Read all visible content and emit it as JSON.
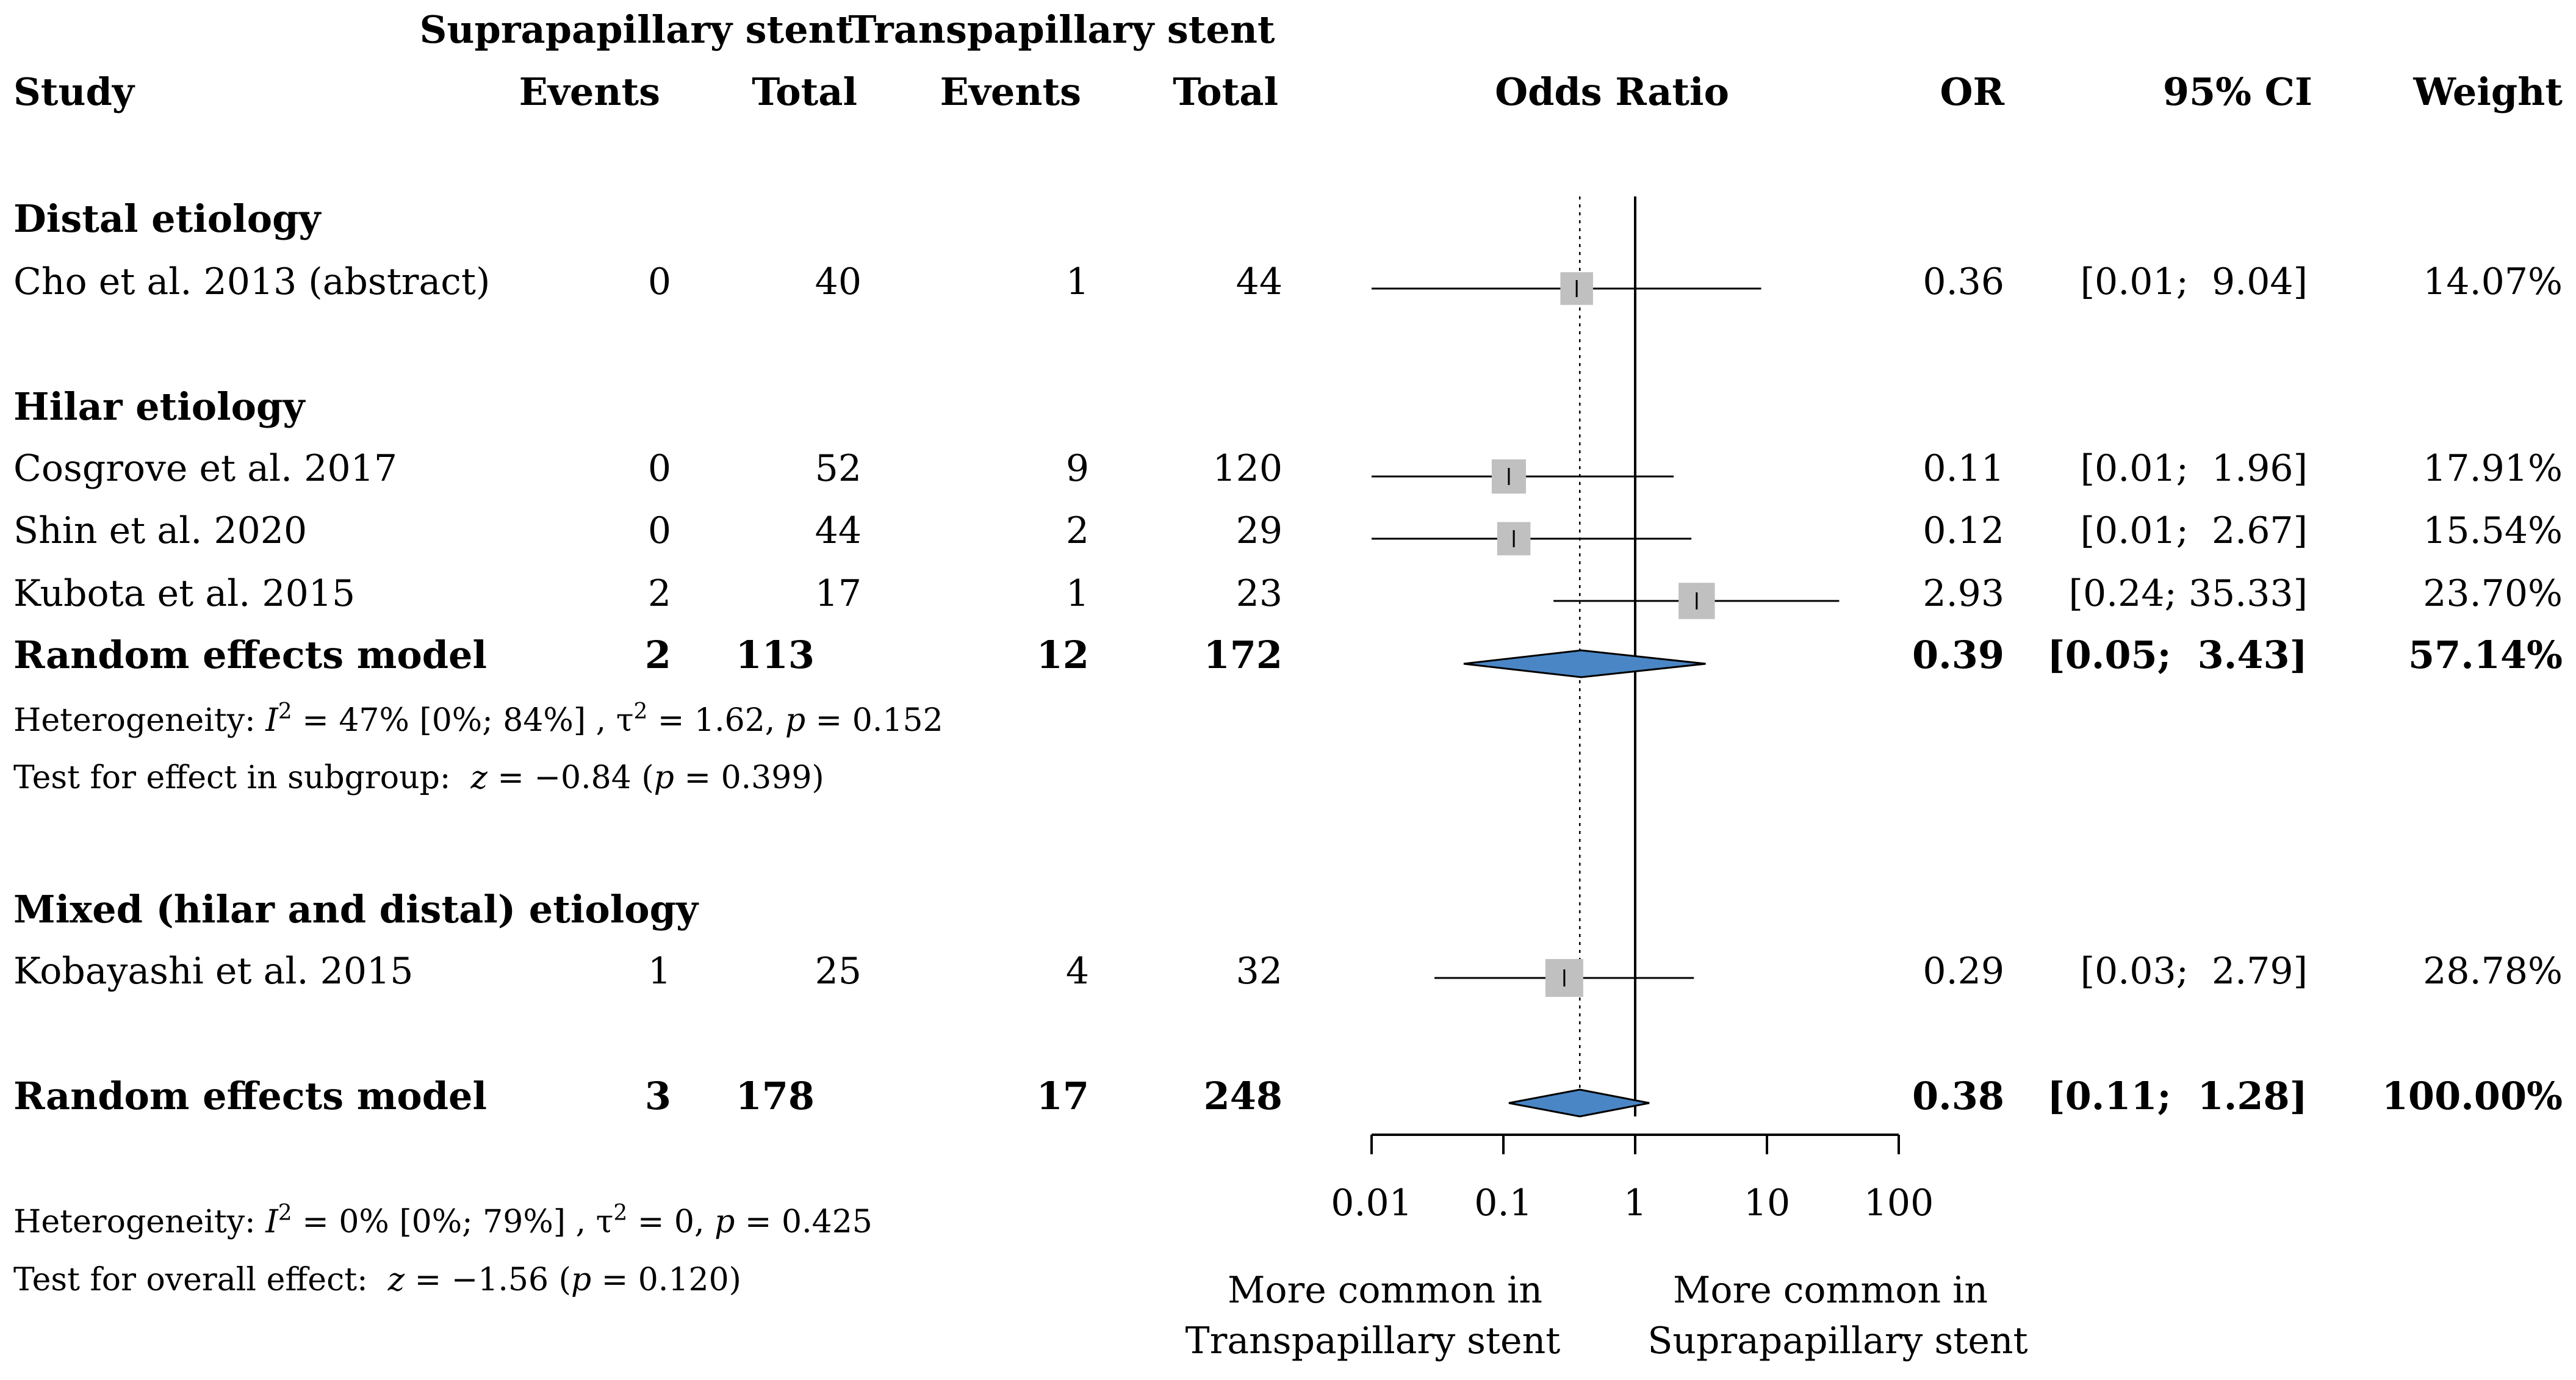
{
  "headers": {
    "group1": "Suprapapillary stent",
    "group2": "Transpapillary stent",
    "study": "Study",
    "events1": "Events",
    "total1": "Total",
    "events2": "Events",
    "total2": "Total",
    "odds_ratio": "Odds Ratio",
    "or": "OR",
    "ci": "95% CI",
    "weight": "Weight"
  },
  "subgroups": [
    {
      "label": "Distal etiology",
      "studies": [
        {
          "name": "Cho et al. 2013 (abstract)",
          "e1": "0",
          "t1": "40",
          "e2": "1",
          "t2": "44",
          "or": 0.36,
          "lo": 0.01,
          "hi": 9.04,
          "or_text": "0.36",
          "ci_text": "[0.01;  9.04]",
          "weight_text": "14.07%",
          "weight": 14.07
        }
      ]
    },
    {
      "label": "Hilar etiology",
      "studies": [
        {
          "name": "Cosgrove et al. 2017",
          "e1": "0",
          "t1": "52",
          "e2": "9",
          "t2": "120",
          "or": 0.11,
          "lo": 0.01,
          "hi": 1.96,
          "or_text": "0.11",
          "ci_text": "[0.01;  1.96]",
          "weight_text": "17.91%",
          "weight": 17.91
        },
        {
          "name": "Shin et al. 2020",
          "e1": "0",
          "t1": "44",
          "e2": "2",
          "t2": "29",
          "or": 0.12,
          "lo": 0.01,
          "hi": 2.67,
          "or_text": "0.12",
          "ci_text": "[0.01;  2.67]",
          "weight_text": "15.54%",
          "weight": 15.54
        },
        {
          "name": "Kubota et al. 2015",
          "e1": "2",
          "t1": "17",
          "e2": "1",
          "t2": "23",
          "or": 2.93,
          "lo": 0.24,
          "hi": 35.33,
          "or_text": "2.93",
          "ci_text": "[0.24; 35.33]",
          "weight_text": "23.70%",
          "weight": 23.7
        }
      ],
      "model": {
        "name": "Random effects model",
        "e1": "2",
        "t1": "113",
        "e2": "12",
        "t2": "172",
        "or": 0.39,
        "lo": 0.05,
        "hi": 3.43,
        "or_text": "0.39",
        "ci_text": "[0.05;  3.43]",
        "weight_text": "57.14%"
      },
      "heterogeneity": {
        "prefix": "Heterogeneity:",
        "i2_sym": "I",
        "i2_sup": "2",
        "i2_text": " = 47% [0%; 84%] , τ",
        "tau_sup": "2",
        "tau_text": " = 1.62, ",
        "p_sym": "p",
        "p_text": " = 0.152"
      },
      "test": {
        "prefix": "Test for effect in subgroup:",
        "z_sym": "z",
        "z_text": " = −0.84 (",
        "p_sym": "p",
        "p_text": " = 0.399)"
      }
    },
    {
      "label": "Mixed (hilar and distal) etiology",
      "studies": [
        {
          "name": "Kobayashi et al. 2015",
          "e1": "1",
          "t1": "25",
          "e2": "4",
          "t2": "32",
          "or": 0.29,
          "lo": 0.03,
          "hi": 2.79,
          "or_text": "0.29",
          "ci_text": "[0.03;  2.79]",
          "weight_text": "28.78%",
          "weight": 28.78
        }
      ]
    }
  ],
  "overall": {
    "model": {
      "name": "Random effects model",
      "e1": "3",
      "t1": "178",
      "e2": "17",
      "t2": "248",
      "or": 0.38,
      "lo": 0.11,
      "hi": 1.28,
      "or_text": "0.38",
      "ci_text": "[0.11;  1.28]",
      "weight_text": "100.00%"
    },
    "heterogeneity": {
      "prefix": "Heterogeneity:",
      "i2_sym": "I",
      "i2_sup": "2",
      "i2_text": " = 0% [0%; 79%] , τ",
      "tau_sup": "2",
      "tau_text": " = 0, ",
      "p_sym": "p",
      "p_text": " = 0.425"
    },
    "test": {
      "prefix": "Test for overall effect:",
      "z_sym": "z",
      "z_text": " = −1.56 (",
      "p_sym": "p",
      "p_text": " = 0.120)"
    }
  },
  "axis": {
    "scale": "log",
    "ticks": [
      0.01,
      0.1,
      1,
      10,
      100
    ],
    "tick_labels": [
      "0.01",
      "0.1",
      "1",
      "10",
      "100"
    ],
    "null_value": 1,
    "pooled_reference": 0.38
  },
  "favours": {
    "left_line1": "More common in",
    "left_line2": "Transpapillary stent",
    "right_line1": "More common in",
    "right_line2": "Suprapapillary stent"
  },
  "colors": {
    "square": "#c0c0c0",
    "diamond": "#4a86c5",
    "text": "#000000"
  },
  "chart_data": {
    "type": "forest",
    "measure": "Odds Ratio",
    "x_scale": "log",
    "xlim": [
      0.01,
      100
    ],
    "series": [
      {
        "name": "Cho et al. 2013 (abstract)",
        "or": 0.36,
        "ci": [
          0.01,
          9.04
        ],
        "weight": 14.07
      },
      {
        "name": "Cosgrove et al. 2017",
        "or": 0.11,
        "ci": [
          0.01,
          1.96
        ],
        "weight": 17.91
      },
      {
        "name": "Shin et al. 2020",
        "or": 0.12,
        "ci": [
          0.01,
          2.67
        ],
        "weight": 15.54
      },
      {
        "name": "Kubota et al. 2015",
        "or": 2.93,
        "ci": [
          0.24,
          35.33
        ],
        "weight": 23.7
      },
      {
        "name": "Random effects model",
        "or": 0.39,
        "ci": [
          0.05,
          3.43
        ],
        "weight": 57.14
      },
      {
        "name": "Kobayashi et al. 2015",
        "or": 0.29,
        "ci": [
          0.03,
          2.79
        ],
        "weight": 28.78
      },
      {
        "name": "Random effects model",
        "or": 0.38,
        "ci": [
          0.11,
          1.28
        ],
        "weight": 100.0
      }
    ]
  }
}
